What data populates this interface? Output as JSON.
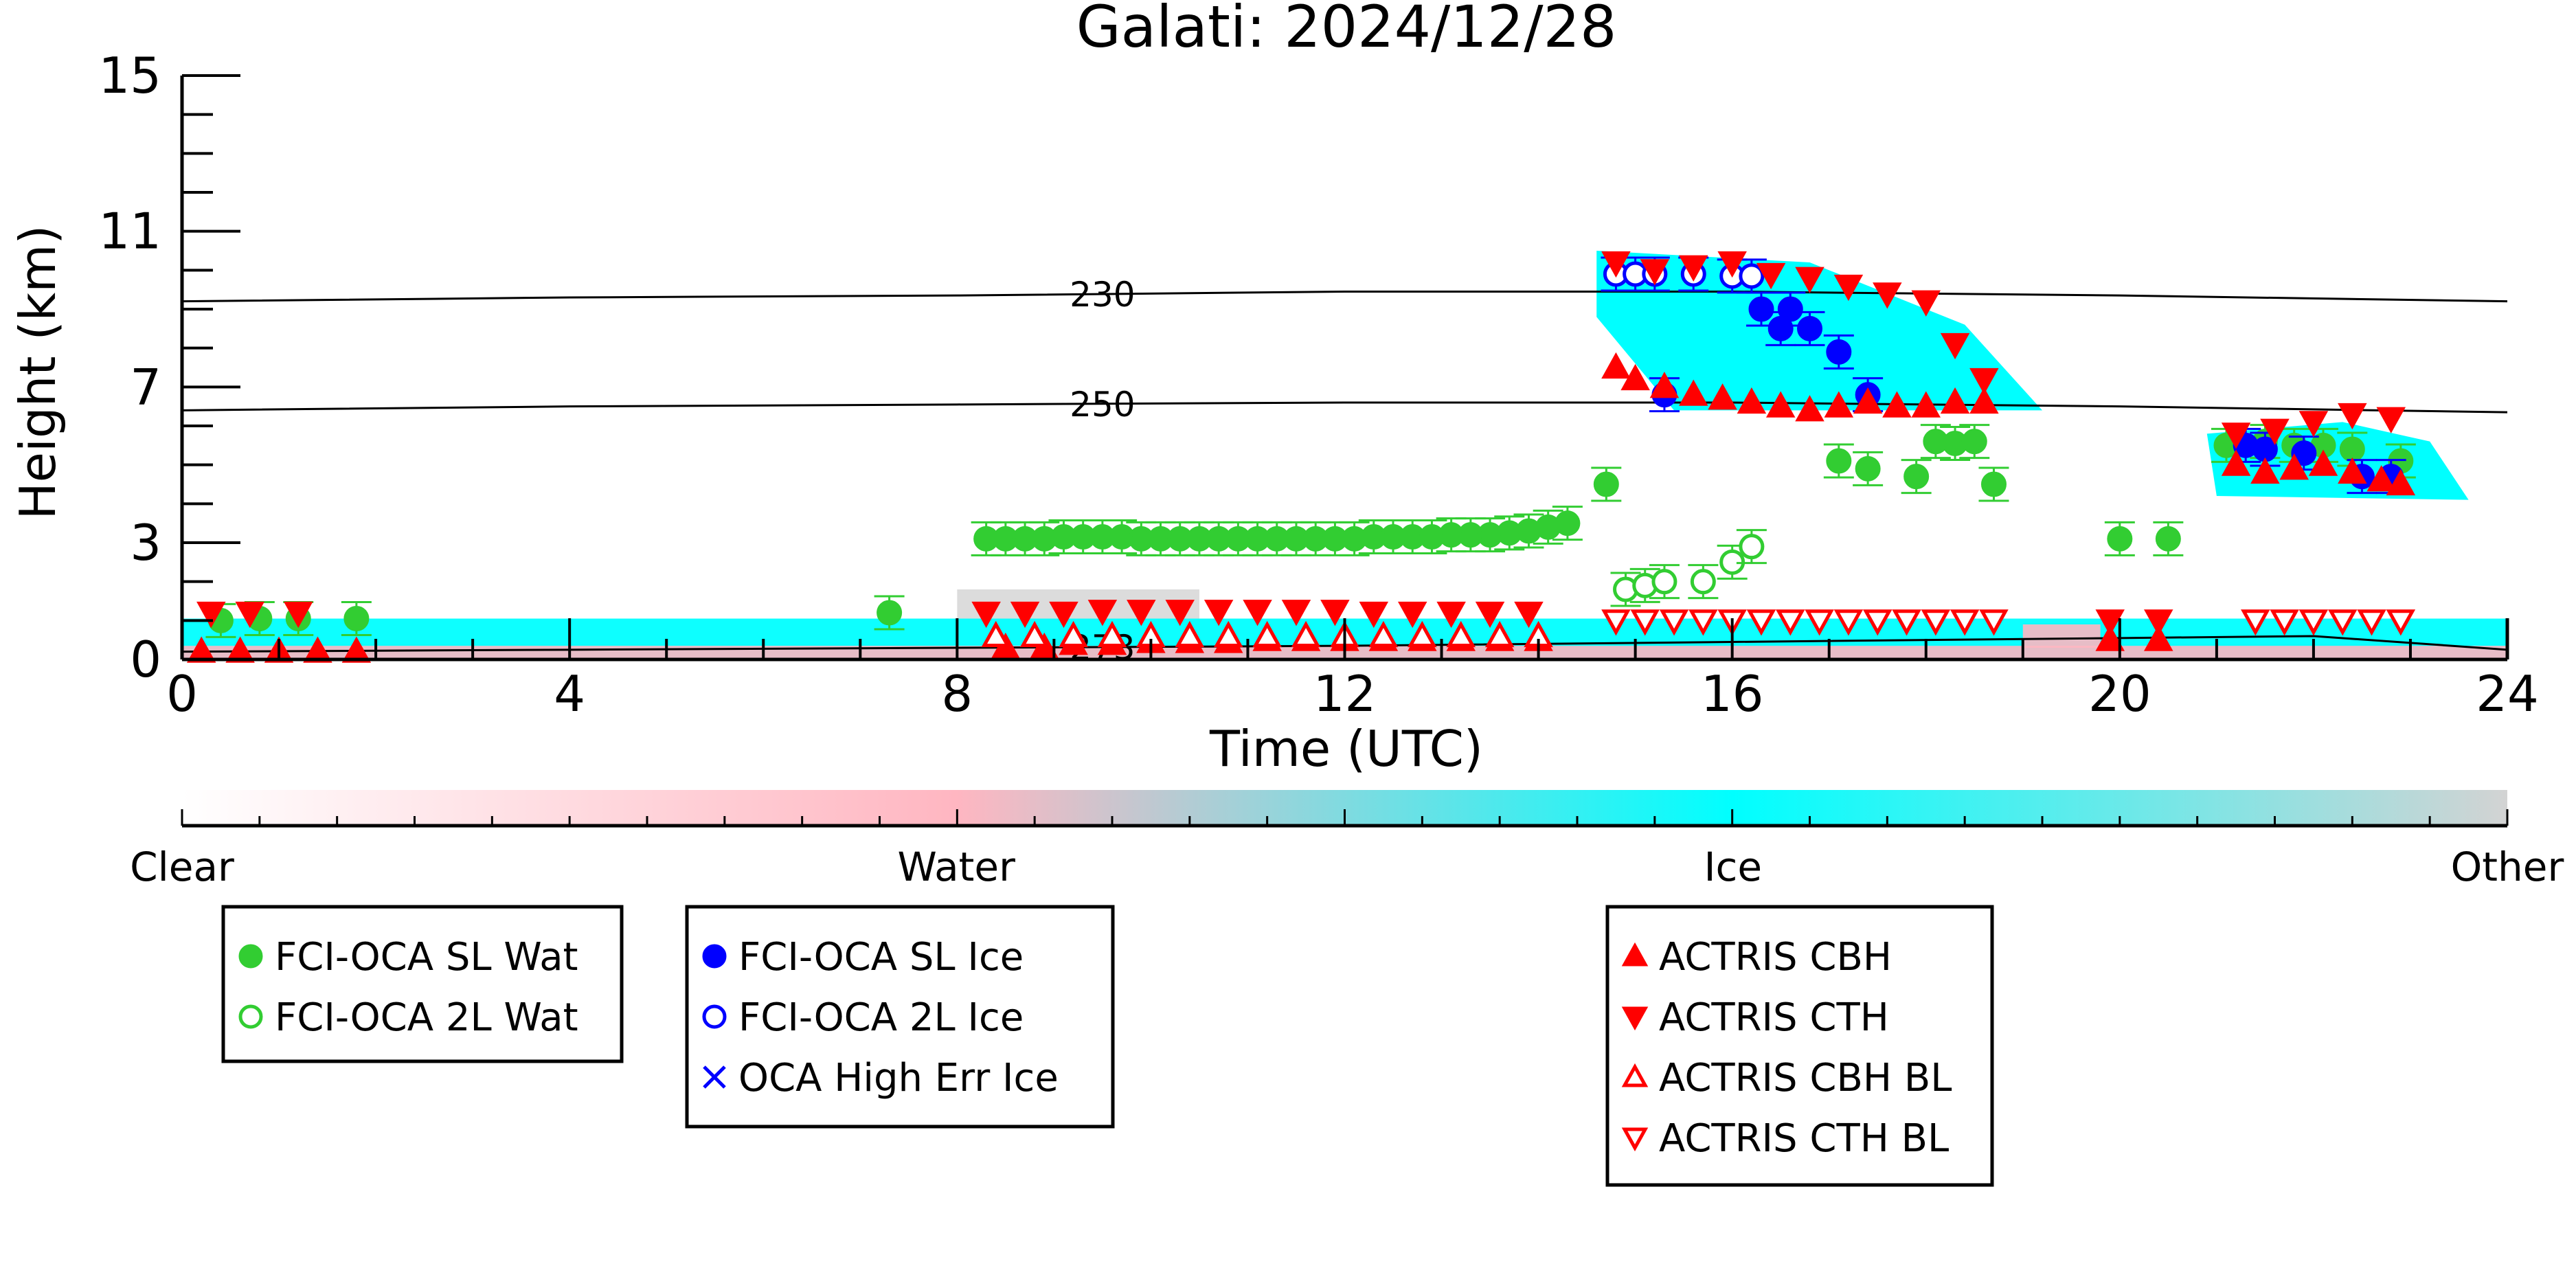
{
  "chart_data": {
    "type": "scatter",
    "title": "Galati: 2024/12/28",
    "xlabel": "Time (UTC)",
    "ylabel": "Height (km)",
    "xlim": [
      0,
      24
    ],
    "ylim": [
      0,
      15
    ],
    "xticks": [
      0,
      4,
      8,
      12,
      16,
      20,
      24
    ],
    "yticks": [
      0,
      3,
      7,
      11,
      15
    ],
    "contours": [
      {
        "label": "230",
        "label_x": 9.5,
        "points": [
          [
            0,
            9.2
          ],
          [
            4,
            9.3
          ],
          [
            8,
            9.35
          ],
          [
            12,
            9.45
          ],
          [
            16,
            9.45
          ],
          [
            20,
            9.35
          ],
          [
            24,
            9.2
          ]
        ]
      },
      {
        "label": "250",
        "label_x": 9.5,
        "points": [
          [
            0,
            6.4
          ],
          [
            4,
            6.5
          ],
          [
            8,
            6.55
          ],
          [
            12,
            6.6
          ],
          [
            16,
            6.6
          ],
          [
            20,
            6.5
          ],
          [
            24,
            6.35
          ]
        ]
      },
      {
        "label": "273",
        "label_x": 9.5,
        "points": [
          [
            0,
            0.2
          ],
          [
            4,
            0.25
          ],
          [
            8,
            0.3
          ],
          [
            12,
            0.35
          ],
          [
            16,
            0.45
          ],
          [
            20,
            0.55
          ],
          [
            22,
            0.6
          ],
          [
            24,
            0.25
          ]
        ]
      }
    ],
    "classification_colorbar": {
      "labels": [
        "Clear",
        "Water",
        "Ice",
        "Other"
      ],
      "colors": [
        "#ffffff",
        "#ffb6c1",
        "#00ffff",
        "#d3d3d3"
      ]
    },
    "series": [
      {
        "name": "FCI-OCA SL Wat",
        "color": "#32cd32",
        "marker": "circle-filled",
        "x": [
          0.4,
          0.8,
          1.2,
          1.8,
          7.3,
          8.3,
          8.5,
          8.7,
          8.9,
          9.1,
          9.3,
          9.5,
          9.7,
          9.9,
          10.1,
          10.3,
          10.5,
          10.7,
          10.9,
          11.1,
          11.3,
          11.5,
          11.7,
          11.9,
          12.1,
          12.3,
          12.5,
          12.7,
          12.9,
          13.1,
          13.3,
          13.5,
          13.7,
          13.9,
          14.1,
          14.3,
          14.7,
          17.1,
          17.4,
          17.9,
          18.1,
          18.3,
          18.5,
          18.7,
          20.0,
          20.5,
          21.1,
          21.5,
          21.8,
          22.1,
          22.4,
          22.9
        ],
        "y": [
          1.0,
          1.05,
          1.05,
          1.05,
          1.2,
          3.1,
          3.1,
          3.1,
          3.1,
          3.15,
          3.15,
          3.15,
          3.15,
          3.1,
          3.1,
          3.1,
          3.1,
          3.1,
          3.1,
          3.1,
          3.1,
          3.1,
          3.1,
          3.1,
          3.1,
          3.15,
          3.15,
          3.15,
          3.15,
          3.2,
          3.2,
          3.2,
          3.25,
          3.3,
          3.4,
          3.5,
          4.5,
          5.1,
          4.9,
          4.7,
          5.6,
          5.55,
          5.6,
          4.5,
          3.1,
          3.1,
          5.5,
          5.6,
          5.5,
          5.5,
          5.4,
          5.1
        ]
      },
      {
        "name": "FCI-OCA 2L Wat",
        "color": "#32cd32",
        "marker": "circle-open",
        "x": [
          14.9,
          15.1,
          15.3,
          15.7,
          16.0,
          16.2
        ],
        "y": [
          1.8,
          1.9,
          2.0,
          2.0,
          2.5,
          2.9
        ]
      },
      {
        "name": "FCI-OCA SL Ice",
        "color": "#0000ff",
        "marker": "circle-filled",
        "x": [
          15.3,
          16.3,
          16.6,
          16.5,
          16.8,
          17.1,
          17.4,
          21.3,
          21.5,
          21.9,
          22.5,
          22.8
        ],
        "y": [
          6.8,
          9.0,
          9.0,
          8.5,
          8.5,
          7.9,
          6.8,
          5.5,
          5.4,
          5.3,
          4.7,
          4.7
        ]
      },
      {
        "name": "FCI-OCA 2L Ice",
        "color": "#0000ff",
        "marker": "circle-open",
        "x": [
          14.8,
          15.0,
          15.2,
          15.6,
          16.0,
          16.2
        ],
        "y": [
          9.9,
          9.9,
          9.9,
          9.9,
          9.85,
          9.85
        ]
      },
      {
        "name": "OCA High Err Ice",
        "color": "#0000ff",
        "marker": "x",
        "x": [],
        "y": []
      },
      {
        "name": "ACTRIS CBH",
        "color": "#ff0000",
        "marker": "triangle-up-filled",
        "x": [
          0.2,
          0.6,
          1.0,
          1.4,
          1.8,
          8.5,
          8.9,
          9.2,
          9.6,
          10.0,
          10.4,
          10.8,
          11.2,
          11.6,
          12.0,
          12.4,
          12.8,
          13.2,
          13.6,
          14.0,
          14.8,
          15.0,
          15.3,
          15.6,
          15.9,
          16.2,
          16.5,
          16.8,
          17.1,
          17.4,
          17.7,
          18.0,
          18.3,
          18.6,
          19.9,
          20.4,
          21.2,
          21.5,
          21.8,
          22.1,
          22.4,
          22.7,
          22.9
        ],
        "y": [
          0.2,
          0.2,
          0.2,
          0.2,
          0.2,
          0.3,
          0.3,
          0.4,
          0.4,
          0.45,
          0.45,
          0.45,
          0.5,
          0.5,
          0.5,
          0.5,
          0.5,
          0.5,
          0.5,
          0.5,
          7.5,
          7.2,
          7.0,
          6.8,
          6.7,
          6.6,
          6.5,
          6.4,
          6.5,
          6.6,
          6.5,
          6.5,
          6.6,
          6.6,
          0.5,
          0.5,
          5.0,
          4.8,
          4.9,
          5.0,
          4.8,
          4.6,
          4.5
        ]
      },
      {
        "name": "ACTRIS CTH",
        "color": "#ff0000",
        "marker": "triangle-down-filled",
        "x": [
          0.3,
          0.7,
          1.2,
          8.3,
          8.7,
          9.1,
          9.5,
          9.9,
          10.3,
          10.7,
          11.1,
          11.5,
          11.9,
          12.3,
          12.7,
          13.1,
          13.5,
          13.9,
          14.8,
          15.2,
          15.6,
          16.0,
          16.4,
          16.8,
          17.2,
          17.6,
          18.0,
          18.3,
          18.6,
          19.9,
          20.4,
          21.2,
          21.6,
          22.0,
          22.4,
          22.8
        ],
        "y": [
          1.2,
          1.2,
          1.2,
          1.2,
          1.2,
          1.2,
          1.25,
          1.25,
          1.25,
          1.25,
          1.25,
          1.25,
          1.25,
          1.2,
          1.2,
          1.2,
          1.2,
          1.2,
          10.2,
          10.0,
          10.1,
          10.2,
          9.9,
          9.8,
          9.6,
          9.4,
          9.2,
          8.1,
          7.2,
          1.0,
          1.0,
          5.8,
          5.9,
          6.1,
          6.3,
          6.2
        ]
      },
      {
        "name": "ACTRIS CBH BL",
        "color": "#ff0000",
        "marker": "triangle-up-open",
        "x": [
          8.4,
          8.8,
          9.2,
          9.6,
          10.0,
          10.4,
          10.8,
          11.2,
          11.6,
          12.0,
          12.4,
          12.8,
          13.2,
          13.6,
          14.0
        ],
        "y": [
          0.6,
          0.6,
          0.6,
          0.6,
          0.6,
          0.6,
          0.6,
          0.6,
          0.6,
          0.6,
          0.6,
          0.6,
          0.6,
          0.6,
          0.6
        ]
      },
      {
        "name": "ACTRIS CTH BL",
        "color": "#ff0000",
        "marker": "triangle-down-open",
        "x": [
          14.8,
          15.1,
          15.4,
          15.7,
          16.0,
          16.3,
          16.6,
          16.9,
          17.2,
          17.5,
          17.8,
          18.1,
          18.4,
          18.7,
          21.4,
          21.7,
          22.0,
          22.3,
          22.6,
          22.9
        ],
        "y": [
          1.0,
          1.0,
          1.0,
          1.0,
          1.0,
          1.0,
          1.0,
          1.0,
          1.0,
          1.0,
          1.0,
          1.0,
          1.0,
          1.0,
          1.0,
          1.0,
          1.0,
          1.0,
          1.0,
          1.0
        ]
      }
    ]
  }
}
